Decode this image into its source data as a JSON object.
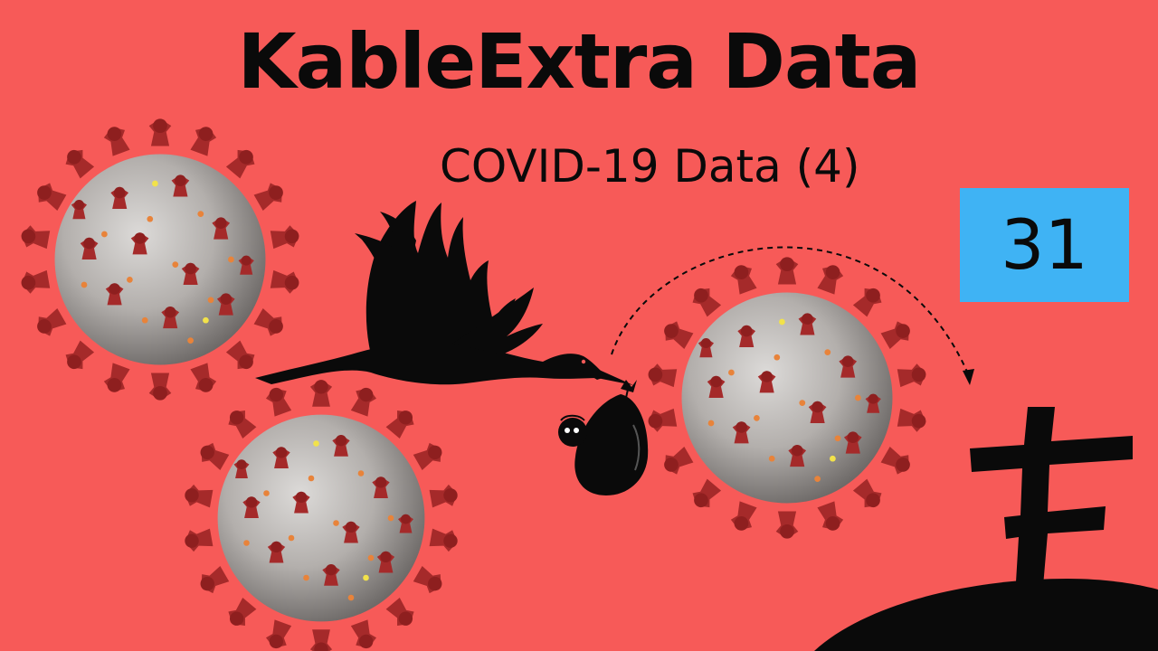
{
  "header": {
    "title": "KableExtra Data",
    "subtitle": "COVID-19 Data (4)"
  },
  "badge": {
    "episode": "31",
    "color": "#3fb3f4"
  },
  "colors": {
    "background": "#f75a58",
    "virus_body": "#b7b3b0",
    "virus_spike": "#a82a2a"
  },
  "icons": [
    "coronavirus-icon",
    "stork-icon",
    "baby-bundle-icon",
    "grave-cross-icon"
  ]
}
